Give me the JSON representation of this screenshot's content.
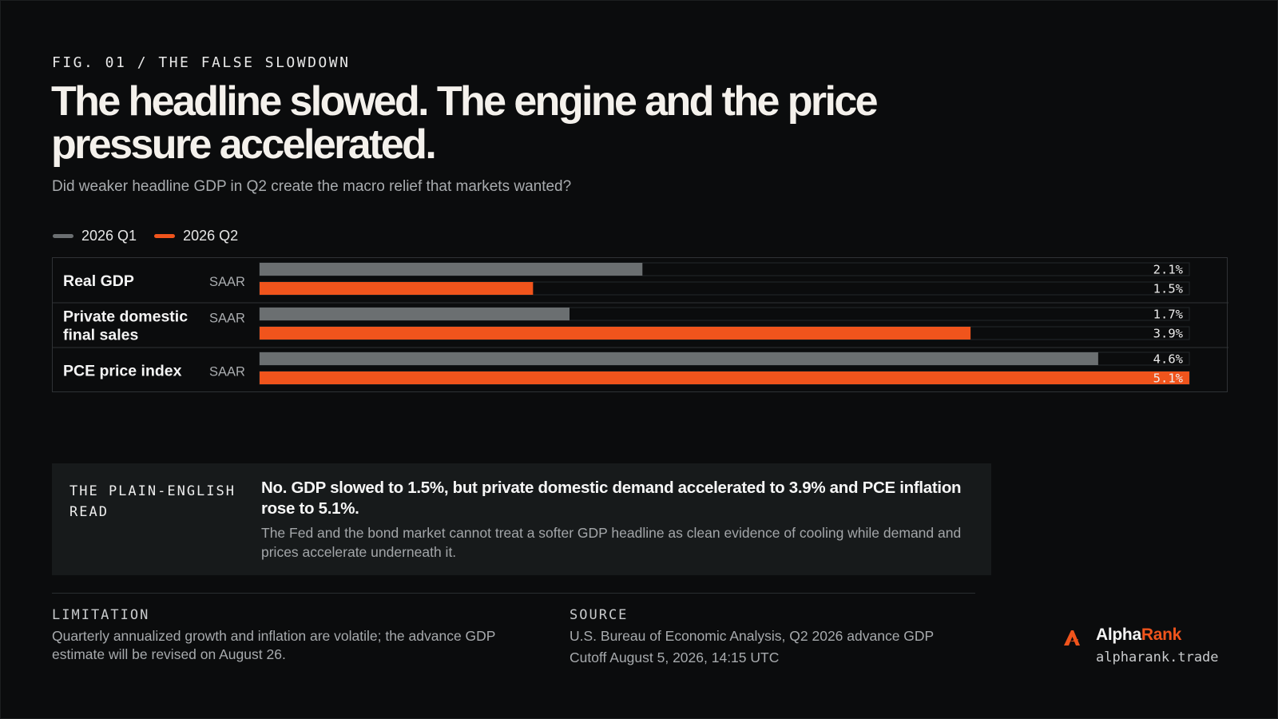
{
  "eyebrow": "FIG. 01 / THE FALSE SLOWDOWN",
  "title": "The headline slowed. The engine and the price pressure accelerated.",
  "subtitle": "Did weaker headline GDP in Q2 create the macro relief that markets wanted?",
  "colors": {
    "q1": "#6b6f71",
    "q2": "#f0541c",
    "background": "#0b0c0d",
    "accent": "#f0541c"
  },
  "chart_data": {
    "type": "bar",
    "orientation": "horizontal",
    "categories": [
      "Real GDP",
      "Private domestic final sales",
      "PCE price index"
    ],
    "category_lines": [
      [
        "Real GDP"
      ],
      [
        "Private domestic",
        "final sales"
      ],
      [
        "PCE price index"
      ]
    ],
    "units": [
      "SAAR",
      "SAAR",
      "SAAR"
    ],
    "series": [
      {
        "name": "2026 Q1",
        "values": [
          2.1,
          1.7,
          4.6
        ],
        "labels": [
          "2.1%",
          "1.7%",
          "4.6%"
        ]
      },
      {
        "name": "2026 Q2",
        "values": [
          1.5,
          3.9,
          5.1
        ],
        "labels": [
          "1.5%",
          "3.9%",
          "5.1%"
        ]
      }
    ],
    "xlim": [
      0,
      5.1
    ],
    "legend": "top-left",
    "grid": false
  },
  "callout": {
    "tag": "THE PLAIN-ENGLISH READ",
    "headline": "No. GDP slowed to 1.5%, but private domestic demand accelerated to 3.9% and PCE inflation rose to 5.1%.",
    "body": "The Fed and the bond market cannot treat a softer GDP headline as clean evidence of cooling while demand and prices accelerate underneath it."
  },
  "limitation": {
    "label": "LIMITATION",
    "text": "Quarterly annualized growth and inflation are volatile; the advance GDP estimate will be revised on August 26."
  },
  "source": {
    "label": "SOURCE",
    "line1": "U.S. Bureau of Economic Analysis, Q2 2026 advance GDP",
    "line2": "Cutoff August 5, 2026, 14:15 UTC"
  },
  "brand": {
    "name_part1": "Alpha",
    "name_part2": "Rank",
    "url": "alpharank.trade",
    "logo_icon": "alpharank-logo-icon"
  }
}
